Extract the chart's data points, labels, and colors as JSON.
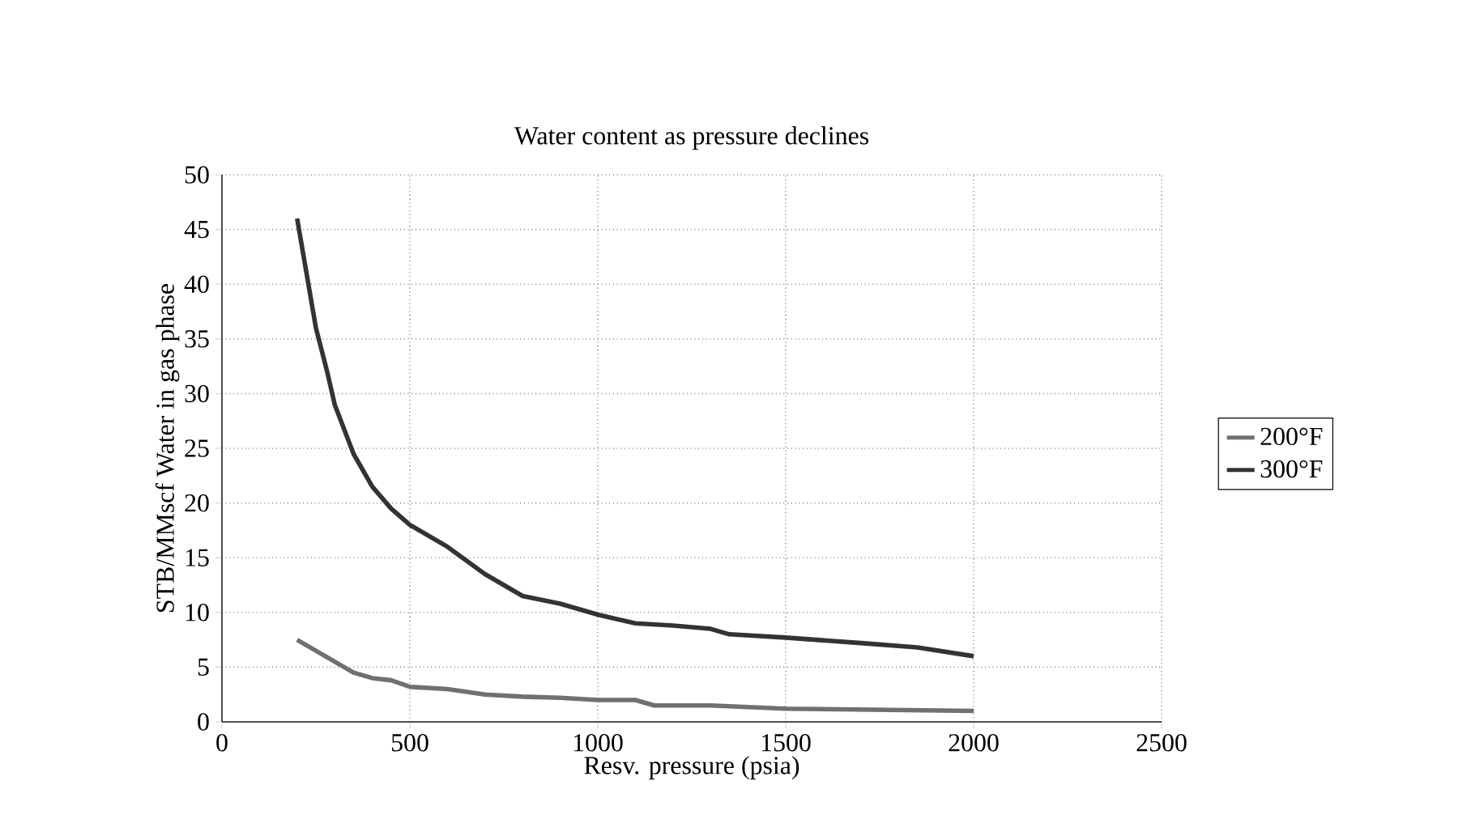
{
  "chart_data": {
    "type": "line",
    "title": "Water content as pressure declines",
    "xlabel": "Resv. pressure (psia)",
    "ylabel": "STB/MMscf Water in gas phase",
    "xlim": [
      0,
      2500
    ],
    "xticks": [
      0,
      500,
      1000,
      1500,
      2000,
      2500
    ],
    "ylim": [
      0,
      50
    ],
    "yticks": [
      0,
      5,
      10,
      15,
      20,
      25,
      30,
      35,
      40,
      45,
      50
    ],
    "grid": true,
    "legend": "right",
    "line_style": "solid",
    "marker": "none",
    "series": [
      {
        "name": "200°F",
        "color": "#707070",
        "x": [
          200,
          300,
          350,
          400,
          450,
          500,
          600,
          700,
          800,
          900,
          1000,
          1100,
          1150,
          1300,
          1500,
          2000
        ],
        "values": [
          7.5,
          5.5,
          4.5,
          4,
          3.8,
          3.2,
          3,
          2.5,
          2.3,
          2.2,
          2,
          2,
          1.5,
          1.5,
          1.2,
          1
        ]
      },
      {
        "name": "300°F",
        "color": "#333333",
        "x": [
          200,
          220,
          250,
          280,
          300,
          350,
          400,
          450,
          500,
          600,
          700,
          800,
          900,
          1000,
          1100,
          1200,
          1300,
          1350,
          1500,
          1700,
          1850,
          2000
        ],
        "values": [
          46,
          42,
          36,
          32,
          29,
          24.5,
          21.5,
          19.5,
          18,
          16,
          13.5,
          11.5,
          10.8,
          9.8,
          9,
          8.8,
          8.5,
          8,
          7.7,
          7.2,
          6.8,
          6
        ]
      }
    ]
  }
}
